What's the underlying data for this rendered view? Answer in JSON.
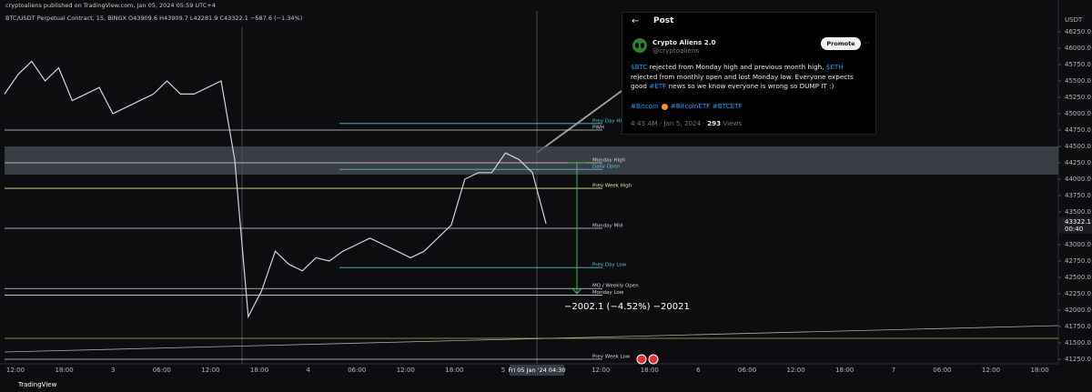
{
  "header": {
    "publisher": "cryptoaliens published on TradingView.com, Jan 05, 2024 05:59 UTC+4",
    "symbol": "BTC/USDT Perpetual Contract, 15, BINGX  O43909.6  H43909.7  L42281.9  C43322.1  −587.6 (−1.34%)",
    "currency": "USDT"
  },
  "footer": {
    "brand": "TradingView"
  },
  "chart_data": {
    "type": "line",
    "color": "#d1d4dc",
    "categories": [
      null,
      null,
      null,
      null,
      null,
      null,
      null,
      null,
      null,
      null,
      null,
      null,
      null,
      null,
      null,
      null,
      null,
      null,
      null,
      null,
      null,
      null,
      null,
      null,
      null,
      null,
      null,
      null,
      null,
      null,
      null,
      null,
      null,
      null,
      null,
      null,
      null,
      null,
      null,
      null,
      null
    ],
    "values": [
      45300,
      45600,
      45800,
      45500,
      45700,
      45200,
      45300,
      45400,
      45000,
      45100,
      45200,
      45300,
      45500,
      45300,
      45300,
      45400,
      45500,
      44300,
      41900,
      42300,
      42900,
      42700,
      42600,
      42800,
      42750,
      42900,
      43000,
      43100,
      43000,
      42900,
      42800,
      42900,
      43100,
      43300,
      44000,
      44100,
      44100,
      44400,
      44300,
      44100,
      43322.1
    ],
    "last_time": "00:40",
    "ylim": [
      41000,
      46500
    ],
    "yticks": [
      {
        "value": 41250,
        "label": "41250.0"
      },
      {
        "value": 41500,
        "label": "41500.0"
      },
      {
        "value": 41750,
        "label": "41750.0"
      },
      {
        "value": 42000,
        "label": "42000.0"
      },
      {
        "value": 42250,
        "label": "42250.0"
      },
      {
        "value": 42500,
        "label": "42500.0"
      },
      {
        "value": 42750,
        "label": "42750.0"
      },
      {
        "value": 43000,
        "label": "43000.0"
      },
      {
        "value": 43250,
        "label": "43250.0"
      },
      {
        "value": 43500,
        "label": "43500.0"
      },
      {
        "value": 43750,
        "label": "43750.0"
      },
      {
        "value": 44000,
        "label": "44000.0"
      },
      {
        "value": 44250,
        "label": "44250.0"
      },
      {
        "value": 44500,
        "label": "44500.0"
      },
      {
        "value": 44750,
        "label": "44750.0"
      },
      {
        "value": 45000,
        "label": "45000.0"
      },
      {
        "value": 45250,
        "label": "45250.0"
      },
      {
        "value": 45500,
        "label": "45500.0"
      },
      {
        "value": 45750,
        "label": "45750.0"
      },
      {
        "value": 46000,
        "label": "46000.0"
      },
      {
        "value": 46250,
        "label": "46250.0"
      }
    ],
    "xticks": [
      "12:00",
      "18:00",
      "3",
      "06:00",
      "12:00",
      "18:00",
      "4",
      "06:00",
      "12:00",
      "18:00",
      "5",
      "",
      "12:00",
      "18:00",
      "6",
      "06:00",
      "12:00",
      "18:00",
      "7",
      "06:00",
      "12:00",
      "18:00"
    ],
    "crosshair_time": "Fri 05 Jan '24  04:30",
    "zone": [
      44070,
      44500
    ],
    "levels": [
      {
        "label": "Prev Day High",
        "value": 44850,
        "color": "#4fc3d9"
      },
      {
        "label": "PWH",
        "value": 44750,
        "color": "#d1d4dc"
      },
      {
        "label": "Monday High",
        "value": 44250,
        "color": "#d1d4dc"
      },
      {
        "label": "Daily Open",
        "value": 44150,
        "color": "#4fc3d9"
      },
      {
        "label": "Prev Week High",
        "value": 43860,
        "color": "#e8e0a0"
      },
      {
        "label": "Monday Mid",
        "value": 43250,
        "color": "#d1d4dc"
      },
      {
        "label": "Prev Day Low",
        "value": 42650,
        "color": "#4fc3d9"
      },
      {
        "label": "MO / Weekly Open",
        "value": 42330,
        "color": "#d1d4dc"
      },
      {
        "label": "Monday Low",
        "value": 42230,
        "color": "#d1d4dc"
      },
      {
        "label": "Prev Week Low",
        "value": 41250,
        "color": "#d1d4dc"
      }
    ],
    "measure": {
      "label": "−2002.1 (−4.52%) −20021",
      "from": 44252,
      "to": 42250,
      "color": "#4caf50"
    }
  },
  "tweet": {
    "title": "Post",
    "name": "Crypto Aliens 2.0",
    "handle": "@cryptoaliens",
    "button": "Promote",
    "body": [
      {
        "text": "$BTC",
        "link": true
      },
      {
        "text": " rejected from Monday high and previous month high, ",
        "link": false
      },
      {
        "text": "$ETH",
        "link": true
      },
      {
        "text": " rejected from monthly open and lost Monday low. Everyone expects good ",
        "link": false
      },
      {
        "text": "#ETF",
        "link": true
      },
      {
        "text": " news so we know everyone is wrong so DUMP IT :)",
        "link": false
      }
    ],
    "tags": [
      "#Bitcoin",
      "#BitcoinETF",
      "#BTCETF"
    ],
    "meta": "4:43 AM · Jan 5, 2024 · ",
    "views": "293",
    "views_label": " Views"
  }
}
